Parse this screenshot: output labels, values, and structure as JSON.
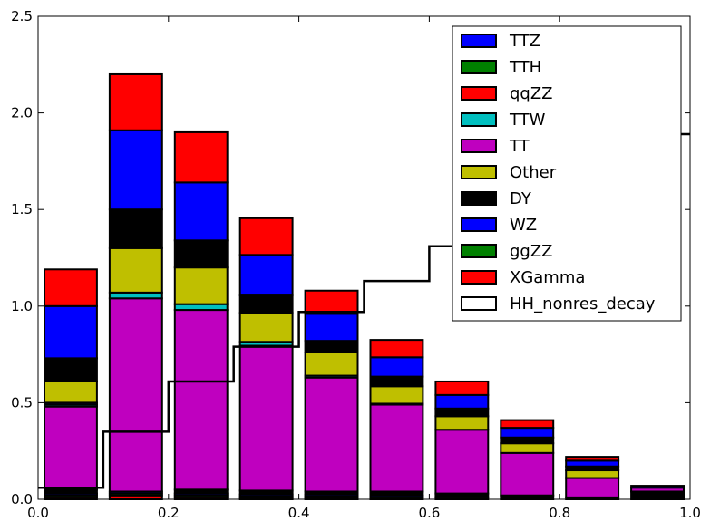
{
  "chart_data": {
    "type": "bar",
    "stacked": true,
    "categories": [
      "0.0-0.1",
      "0.1-0.2",
      "0.2-0.3",
      "0.3-0.4",
      "0.4-0.5",
      "0.5-0.6",
      "0.6-0.7",
      "0.7-0.8",
      "0.8-0.9",
      "0.9-1.0"
    ],
    "bin_edges": [
      0.0,
      0.1,
      0.2,
      0.3,
      0.4,
      0.5,
      0.6,
      0.7,
      0.8,
      0.9,
      1.0
    ],
    "xlim": [
      0.0,
      1.0
    ],
    "ylim": [
      0.0,
      2.5
    ],
    "xticks": [
      "0.0",
      "0.2",
      "0.4",
      "0.6",
      "0.8",
      "1.0"
    ],
    "yticks": [
      "0.0",
      "0.5",
      "1.0",
      "1.5",
      "2.0",
      "2.5"
    ],
    "legend_position": "top-right",
    "series": [
      {
        "name": "XGamma",
        "color": "#ff0000",
        "values": [
          0.01,
          0.02,
          0.01,
          0.005,
          0.005,
          0.0,
          0.0,
          0.0,
          0.0,
          0.0
        ]
      },
      {
        "name": "ggZZ",
        "color": "#008000",
        "values": [
          0.01,
          0.01,
          0.01,
          0.01,
          0.01,
          0.01,
          0.01,
          0.0,
          0.0,
          0.0
        ]
      },
      {
        "name": "WZ",
        "color": "#0000ff",
        "values": [
          0.01,
          0.01,
          0.01,
          0.01,
          0.01,
          0.01,
          0.0,
          0.0,
          0.0,
          0.0
        ]
      },
      {
        "name": "DY",
        "color": "#000000",
        "values": [
          0.02,
          0.0,
          0.02,
          0.02,
          0.015,
          0.02,
          0.02,
          0.02,
          0.01,
          0.04
        ]
      },
      {
        "name": "Other",
        "color": "#bfbf00",
        "values": [
          0.0,
          0.0,
          0.0,
          0.0,
          0.0,
          0.0,
          0.0,
          0.0,
          0.0,
          0.0
        ]
      },
      {
        "name": "TT",
        "color": "#bf00bf",
        "values": [
          0.43,
          1.0,
          0.93,
          0.75,
          0.59,
          0.45,
          0.33,
          0.22,
          0.1,
          0.02
        ]
      },
      {
        "name": "TTW",
        "color": "#00bfbf",
        "values": [
          0.01,
          0.03,
          0.03,
          0.02,
          0.01,
          0.005,
          0.0,
          0.0,
          0.0,
          0.0
        ]
      },
      {
        "name": "qqZZ",
        "color": "#ff0000",
        "values": [
          0.0,
          0.0,
          0.0,
          0.0,
          0.0,
          0.0,
          0.0,
          0.0,
          0.0,
          0.0
        ]
      },
      {
        "name": "TTH",
        "color": "#008000",
        "values": [
          0.0,
          0.0,
          0.0,
          0.0,
          0.0,
          0.0,
          0.0,
          0.0,
          0.0,
          0.0
        ]
      },
      {
        "name": "TTZ",
        "color": "#0000ff",
        "values": [
          0.01,
          0.0,
          0.0,
          0.0,
          0.0,
          0.0,
          0.0,
          0.0,
          0.0,
          0.01
        ]
      },
      {
        "name": "Other",
        "color": "#bfbf00",
        "values": [
          0.11,
          0.23,
          0.19,
          0.15,
          0.12,
          0.09,
          0.07,
          0.05,
          0.04,
          0.0
        ]
      },
      {
        "name": "DY",
        "color": "#000000",
        "values": [
          0.12,
          0.2,
          0.14,
          0.09,
          0.06,
          0.05,
          0.04,
          0.03,
          0.02,
          0.0
        ]
      },
      {
        "name": "WZ",
        "color": "#0000ff",
        "values": [
          0.27,
          0.41,
          0.3,
          0.21,
          0.14,
          0.1,
          0.07,
          0.05,
          0.03,
          0.0
        ]
      },
      {
        "name": "XGamma",
        "color": "#ff0000",
        "values": [
          0.19,
          0.29,
          0.26,
          0.19,
          0.12,
          0.09,
          0.07,
          0.04,
          0.02,
          0.0
        ]
      }
    ],
    "legend": [
      {
        "name": "TTZ",
        "color": "#0000ff"
      },
      {
        "name": "TTH",
        "color": "#008000"
      },
      {
        "name": "qqZZ",
        "color": "#ff0000"
      },
      {
        "name": "TTW",
        "color": "#00bfbf"
      },
      {
        "name": "TT",
        "color": "#bf00bf"
      },
      {
        "name": "Other",
        "color": "#bfbf00"
      },
      {
        "name": "DY",
        "color": "#000000"
      },
      {
        "name": "WZ",
        "color": "#0000ff"
      },
      {
        "name": "ggZZ",
        "color": "#008000"
      },
      {
        "name": "XGamma",
        "color": "#ff0000"
      },
      {
        "name": "HH_nonres_decay",
        "color": "#ffffff",
        "style": "step"
      }
    ],
    "step_series": {
      "name": "HH_nonres_decay",
      "color": "#000000",
      "values": [
        0.06,
        0.35,
        0.61,
        0.79,
        0.97,
        1.13,
        1.31,
        1.42,
        1.65,
        1.89
      ]
    }
  }
}
